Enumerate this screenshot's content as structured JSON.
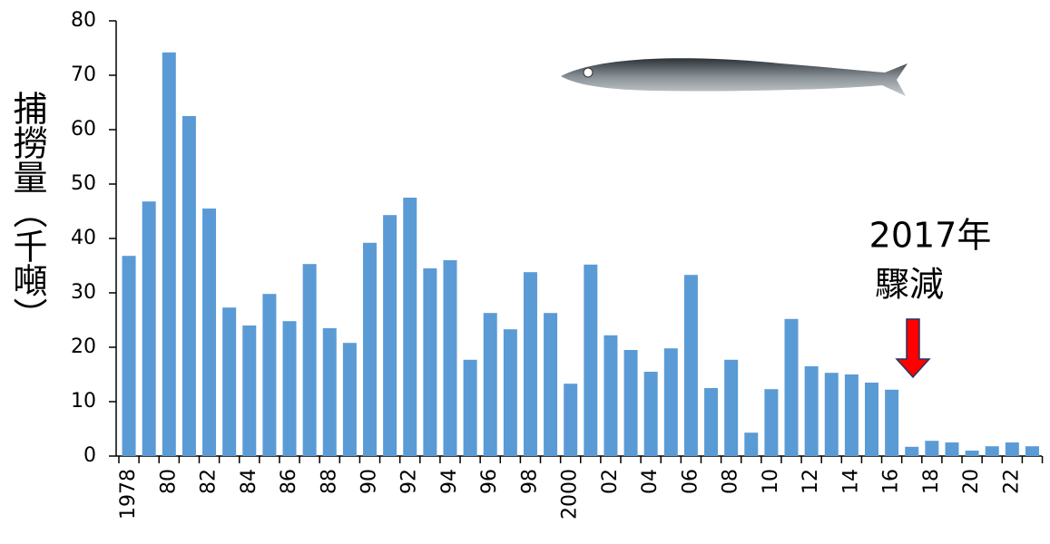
{
  "chart_data": {
    "type": "bar",
    "y_label": "捕撈量（千噸）",
    "annotation": [
      "2017年",
      "驟減"
    ],
    "annotation_color": "#ff0000",
    "categories": [
      "1978",
      null,
      "80",
      null,
      "82",
      null,
      "84",
      null,
      "86",
      null,
      "88",
      null,
      "90",
      null,
      "92",
      null,
      "94",
      null,
      "96",
      null,
      "98",
      null,
      "2000",
      null,
      "02",
      null,
      "04",
      null,
      "06",
      null,
      "08",
      null,
      "10",
      null,
      "12",
      null,
      "14",
      null,
      "16",
      null,
      "18",
      null,
      "20",
      null,
      "22",
      null
    ],
    "values": [
      36.8,
      46.8,
      74.2,
      62.5,
      45.5,
      27.3,
      24,
      29.8,
      24.8,
      35.3,
      23.5,
      20.8,
      39.2,
      44.3,
      47.5,
      34.5,
      36,
      17.7,
      26.3,
      23.3,
      33.8,
      26.3,
      13.3,
      35.2,
      22.2,
      19.5,
      15.5,
      19.8,
      33.3,
      12.5,
      17.7,
      4.3,
      12.3,
      25.2,
      16.5,
      15.3,
      15,
      13.5,
      12.2,
      1.7,
      2.8,
      2.5,
      1,
      1.8,
      2.5,
      1.8
    ],
    "color": "#5b9bd5",
    "ylim": [
      0,
      80
    ],
    "yticks": [
      0,
      10,
      20,
      30,
      40,
      50,
      60,
      70,
      80
    ]
  }
}
